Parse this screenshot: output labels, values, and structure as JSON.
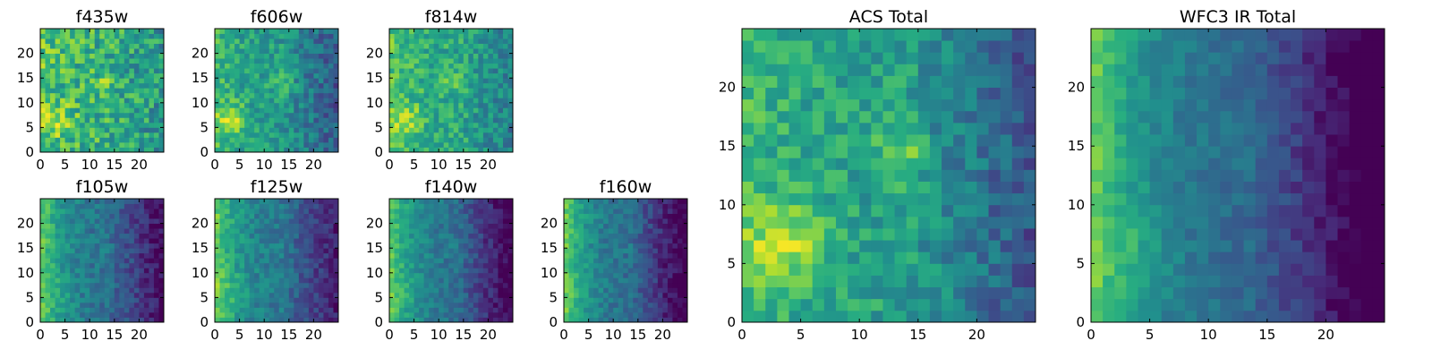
{
  "chart_data": [
    {
      "id": "f435w",
      "type": "heatmap",
      "title": "f435w",
      "x_ticks": [
        "0",
        "5",
        "10",
        "15",
        "20"
      ],
      "y_ticks": [
        "0",
        "5",
        "10",
        "15",
        "20"
      ],
      "xlim": [
        0,
        25
      ],
      "ylim": [
        0,
        25
      ],
      "grid_size": [
        25,
        25
      ],
      "colormap": "viridis",
      "pattern": "noisy",
      "seed": 11,
      "base": 0.66,
      "blob_strength": 0.2,
      "left_strength": 0.1,
      "right_dip": 0.1,
      "noise": 0.2
    },
    {
      "id": "f606w",
      "type": "heatmap",
      "title": "f606w",
      "x_ticks": [
        "0",
        "5",
        "10",
        "15",
        "20"
      ],
      "y_ticks": [
        "0",
        "5",
        "10",
        "15",
        "20"
      ],
      "xlim": [
        0,
        25
      ],
      "ylim": [
        0,
        25
      ],
      "grid_size": [
        25,
        25
      ],
      "colormap": "viridis",
      "pattern": "blob",
      "seed": 22,
      "base": 0.58,
      "blob_strength": 0.3,
      "left_strength": 0.15,
      "right_dip": 0.25,
      "noise": 0.14
    },
    {
      "id": "f814w",
      "type": "heatmap",
      "title": "f814w",
      "x_ticks": [
        "0",
        "5",
        "10",
        "15",
        "20"
      ],
      "y_ticks": [
        "0",
        "5",
        "10",
        "15",
        "20"
      ],
      "xlim": [
        0,
        25
      ],
      "ylim": [
        0,
        25
      ],
      "grid_size": [
        25,
        25
      ],
      "colormap": "viridis",
      "pattern": "blob",
      "seed": 33,
      "base": 0.64,
      "blob_strength": 0.22,
      "left_strength": 0.12,
      "right_dip": 0.18,
      "noise": 0.15
    },
    {
      "id": "f105w",
      "type": "heatmap",
      "title": "f105w",
      "x_ticks": [
        "0",
        "5",
        "10",
        "15",
        "20"
      ],
      "y_ticks": [
        "0",
        "5",
        "10",
        "15",
        "20"
      ],
      "xlim": [
        0,
        25
      ],
      "ylim": [
        0,
        25
      ],
      "grid_size": [
        25,
        25
      ],
      "colormap": "viridis",
      "pattern": "ir",
      "seed": 44,
      "base": 0.48,
      "blob_strength": 0.05,
      "left_strength": 0.42,
      "right_dip": 0.3,
      "noise": 0.1
    },
    {
      "id": "f125w",
      "type": "heatmap",
      "title": "f125w",
      "x_ticks": [
        "0",
        "5",
        "10",
        "15",
        "20"
      ],
      "y_ticks": [
        "0",
        "5",
        "10",
        "15",
        "20"
      ],
      "xlim": [
        0,
        25
      ],
      "ylim": [
        0,
        25
      ],
      "grid_size": [
        25,
        25
      ],
      "colormap": "viridis",
      "pattern": "ir",
      "seed": 55,
      "base": 0.5,
      "blob_strength": 0.08,
      "left_strength": 0.4,
      "right_dip": 0.28,
      "noise": 0.1
    },
    {
      "id": "f140w",
      "type": "heatmap",
      "title": "f140w",
      "x_ticks": [
        "0",
        "5",
        "10",
        "15",
        "20"
      ],
      "y_ticks": [
        "0",
        "5",
        "10",
        "15",
        "20"
      ],
      "xlim": [
        0,
        25
      ],
      "ylim": [
        0,
        25
      ],
      "grid_size": [
        25,
        25
      ],
      "colormap": "viridis",
      "pattern": "ir",
      "seed": 66,
      "base": 0.48,
      "blob_strength": 0.05,
      "left_strength": 0.42,
      "right_dip": 0.36,
      "noise": 0.09
    },
    {
      "id": "f160w",
      "type": "heatmap",
      "title": "f160w",
      "x_ticks": [
        "0",
        "5",
        "10",
        "15",
        "20"
      ],
      "y_ticks": [
        "0",
        "5",
        "10",
        "15",
        "20"
      ],
      "xlim": [
        0,
        25
      ],
      "ylim": [
        0,
        25
      ],
      "grid_size": [
        25,
        25
      ],
      "colormap": "viridis",
      "pattern": "ir",
      "seed": 77,
      "base": 0.47,
      "blob_strength": 0.05,
      "left_strength": 0.44,
      "right_dip": 0.36,
      "noise": 0.09
    },
    {
      "id": "acs-total",
      "type": "heatmap",
      "title": "ACS Total",
      "x_ticks": [
        "0",
        "5",
        "10",
        "15",
        "20"
      ],
      "y_ticks": [
        "0",
        "5",
        "10",
        "15",
        "20"
      ],
      "xlim": [
        0,
        25
      ],
      "ylim": [
        0,
        25
      ],
      "grid_size": [
        25,
        25
      ],
      "colormap": "viridis",
      "pattern": "blob",
      "seed": 88,
      "base": 0.6,
      "blob_strength": 0.3,
      "left_strength": 0.12,
      "right_dip": 0.3,
      "noise": 0.13
    },
    {
      "id": "wfc3-ir-total",
      "type": "heatmap",
      "title": "WFC3 IR Total",
      "x_ticks": [
        "0",
        "5",
        "10",
        "15",
        "20"
      ],
      "y_ticks": [
        "0",
        "5",
        "10",
        "15",
        "20"
      ],
      "xlim": [
        0,
        25
      ],
      "ylim": [
        0,
        25
      ],
      "grid_size": [
        25,
        25
      ],
      "colormap": "viridis",
      "pattern": "ir",
      "seed": 99,
      "base": 0.46,
      "blob_strength": 0.08,
      "left_strength": 0.46,
      "right_dip": 0.4,
      "noise": 0.07
    }
  ],
  "colors": {
    "viridis": [
      "#440154",
      "#472c7a",
      "#3b518b",
      "#2c718e",
      "#21908d",
      "#27ad81",
      "#5cc863",
      "#aadc32",
      "#fde725"
    ],
    "axis": "#000000",
    "background": "#ffffff"
  }
}
